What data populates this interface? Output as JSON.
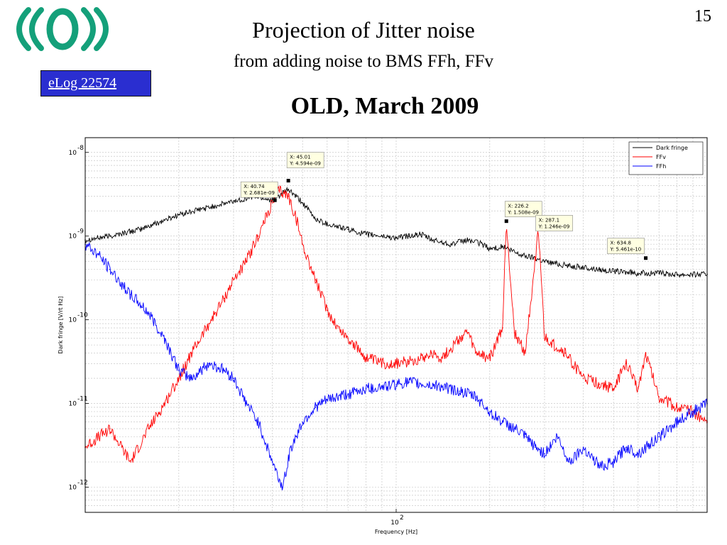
{
  "page_number": "15",
  "header": {
    "title": "Projection of Jitter noise",
    "subtitle": "from adding noise to BMS FFh, FFv",
    "section_title": "OLD, March 2009"
  },
  "elog": {
    "label": "eLog 22574"
  },
  "colors": {
    "dark_fringe": "#000000",
    "ffv": "#ff0000",
    "ffh": "#0000ff",
    "elog_bg": "#2a2ed0",
    "logo": "#14a07a"
  },
  "chart_data": {
    "type": "line",
    "xlabel": "Frequency [Hz]",
    "ylabel": "Dark fringe [V/rt Hz]",
    "x_scale": "log",
    "y_scale": "log",
    "xlim": [
      10,
      1000
    ],
    "ylim": [
      5e-13,
      1.5e-08
    ],
    "grid": true,
    "legend_position": "top-right",
    "x_ticks": [
      {
        "value": 100,
        "label": "10",
        "exp": "2"
      }
    ],
    "y_ticks": [
      {
        "value": 1e-08,
        "label": "10",
        "exp": "-8"
      },
      {
        "value": 1e-09,
        "label": "10",
        "exp": "-9"
      },
      {
        "value": 1e-10,
        "label": "10",
        "exp": "-10"
      },
      {
        "value": 1e-11,
        "label": "10",
        "exp": "-11"
      },
      {
        "value": 1e-12,
        "label": "10",
        "exp": "-12"
      }
    ],
    "series": [
      {
        "name": "Dark fringe",
        "color": "#000000",
        "x": [
          10,
          12,
          15,
          20,
          25,
          30,
          35,
          40,
          45,
          50,
          55,
          60,
          70,
          80,
          90,
          100,
          110,
          120,
          130,
          150,
          170,
          190,
          200,
          220,
          250,
          280,
          300,
          350,
          400,
          450,
          500,
          600,
          700,
          800,
          900,
          1000
        ],
        "y": [
          9e-10,
          1e-09,
          1.2e-09,
          1.8e-09,
          2.2e-09,
          2.6e-09,
          3e-09,
          2.7e-09,
          3.6e-09,
          2.5e-09,
          1.6e-09,
          1.4e-09,
          1.2e-09,
          1.05e-09,
          1e-09,
          9.5e-10,
          1e-09,
          1.05e-09,
          9e-10,
          8e-10,
          9e-10,
          8e-10,
          7e-10,
          7.5e-10,
          6e-10,
          5.5e-10,
          5e-10,
          4.5e-10,
          4.2e-10,
          4e-10,
          3.8e-10,
          3.6e-10,
          3.6e-10,
          3.5e-10,
          3.5e-10,
          3.5e-10
        ]
      },
      {
        "name": "FFv",
        "color": "#ff0000",
        "x": [
          10,
          12,
          14,
          16,
          18,
          20,
          22,
          25,
          28,
          30,
          33,
          36,
          40,
          42,
          45,
          48,
          50,
          55,
          60,
          65,
          70,
          80,
          90,
          100,
          110,
          120,
          130,
          140,
          150,
          160,
          170,
          180,
          200,
          220,
          226,
          240,
          260,
          287,
          300,
          350,
          400,
          450,
          500,
          550,
          600,
          635,
          650,
          700,
          800,
          900,
          1000
        ],
        "y": [
          3e-12,
          5e-12,
          2e-12,
          5e-12,
          1e-11,
          2e-11,
          4e-11,
          9e-11,
          1.8e-10,
          3e-10,
          5e-10,
          1e-09,
          2.5e-09,
          3.5e-09,
          3e-09,
          1.5e-09,
          8e-10,
          3e-10,
          1.3e-10,
          8e-11,
          6e-11,
          3.5e-11,
          3e-11,
          3e-11,
          3.2e-11,
          3.5e-11,
          4e-11,
          3.5e-11,
          4.5e-11,
          6e-11,
          7e-11,
          4e-11,
          3.5e-11,
          8e-11,
          1.5e-09,
          7e-11,
          4e-11,
          1.2e-09,
          6e-11,
          4e-11,
          2e-11,
          1.7e-11,
          1.5e-11,
          3e-11,
          1.5e-11,
          4e-11,
          3e-11,
          1.2e-11,
          9e-12,
          8e-12,
          6e-12
        ]
      },
      {
        "name": "FFh",
        "color": "#0000ff",
        "x": [
          10,
          11,
          12,
          14,
          16,
          18,
          20,
          22,
          25,
          28,
          30,
          33,
          36,
          40,
          43,
          46,
          50,
          55,
          60,
          70,
          80,
          90,
          100,
          110,
          120,
          140,
          160,
          180,
          200,
          220,
          240,
          260,
          280,
          300,
          330,
          360,
          400,
          450,
          500,
          550,
          600,
          700,
          800,
          900,
          1000
        ],
        "y": [
          8e-10,
          6e-10,
          4e-10,
          2e-10,
          1.2e-10,
          6e-11,
          2.5e-11,
          2e-11,
          3e-11,
          2.5e-11,
          2e-11,
          1e-11,
          6e-12,
          2e-12,
          1e-12,
          3e-12,
          6e-12,
          9e-12,
          1.1e-11,
          1.3e-11,
          1.5e-11,
          1.6e-11,
          1.7e-11,
          1.8e-11,
          1.7e-11,
          1.6e-11,
          1.4e-11,
          1.2e-11,
          8e-12,
          6e-12,
          5e-12,
          4e-12,
          3e-12,
          2.5e-12,
          4e-12,
          2e-12,
          3e-12,
          1.8e-12,
          2e-12,
          3e-12,
          2.5e-12,
          4e-12,
          6e-12,
          8e-12,
          1e-11
        ]
      }
    ],
    "annotations": [
      {
        "x": 40.74,
        "y": 2.681e-09,
        "x_text": "X: 40.74",
        "y_text": "Y: 2.681e-09"
      },
      {
        "x": 45.01,
        "y": 4.594e-09,
        "x_text": "X: 45.01",
        "y_text": "Y: 4.594e-09"
      },
      {
        "x": 226.2,
        "y": 1.508e-09,
        "x_text": "X: 226.2",
        "y_text": "Y: 1.508e-09"
      },
      {
        "x": 287.1,
        "y": 1.246e-09,
        "x_text": "X: 287.1",
        "y_text": "Y: 1.246e-09"
      },
      {
        "x": 634.8,
        "y": 5.461e-10,
        "x_text": "X: 634.8",
        "y_text": "Y: 5.461e-10"
      }
    ]
  }
}
